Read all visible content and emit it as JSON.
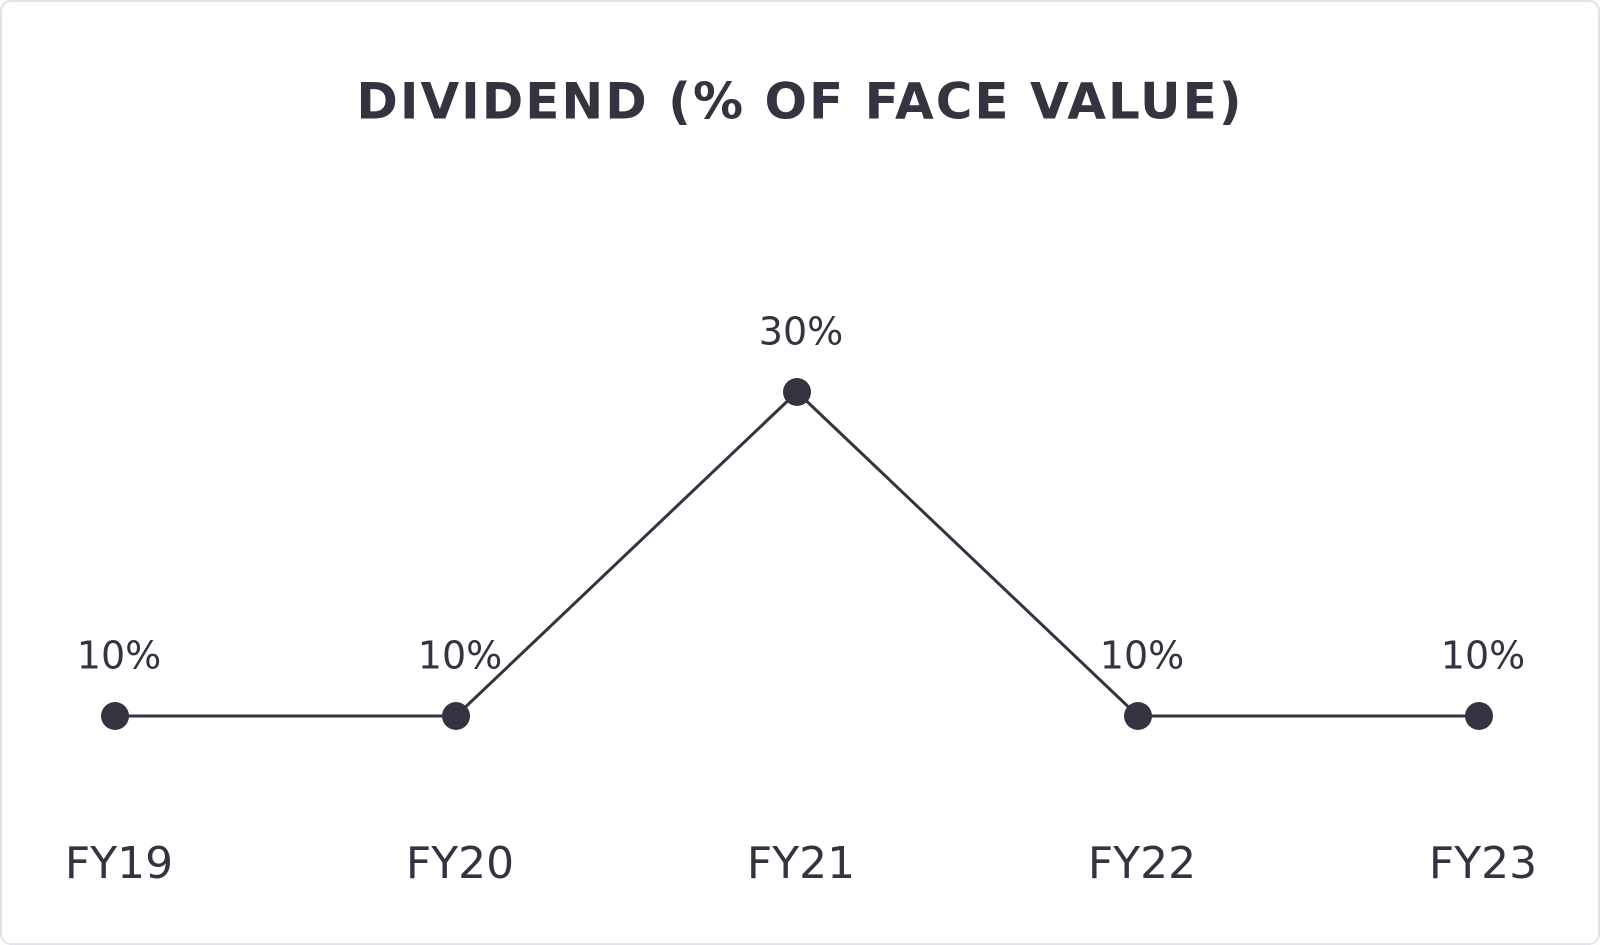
{
  "chart_data": {
    "type": "line",
    "title": "DIVIDEND (% OF FACE VALUE)",
    "categories": [
      "FY19",
      "FY20",
      "FY21",
      "FY22",
      "FY23"
    ],
    "values": [
      10,
      10,
      30,
      10,
      10
    ],
    "value_labels": [
      "10%",
      "10%",
      "30%",
      "10%",
      "10%"
    ],
    "color": "#34333f"
  }
}
